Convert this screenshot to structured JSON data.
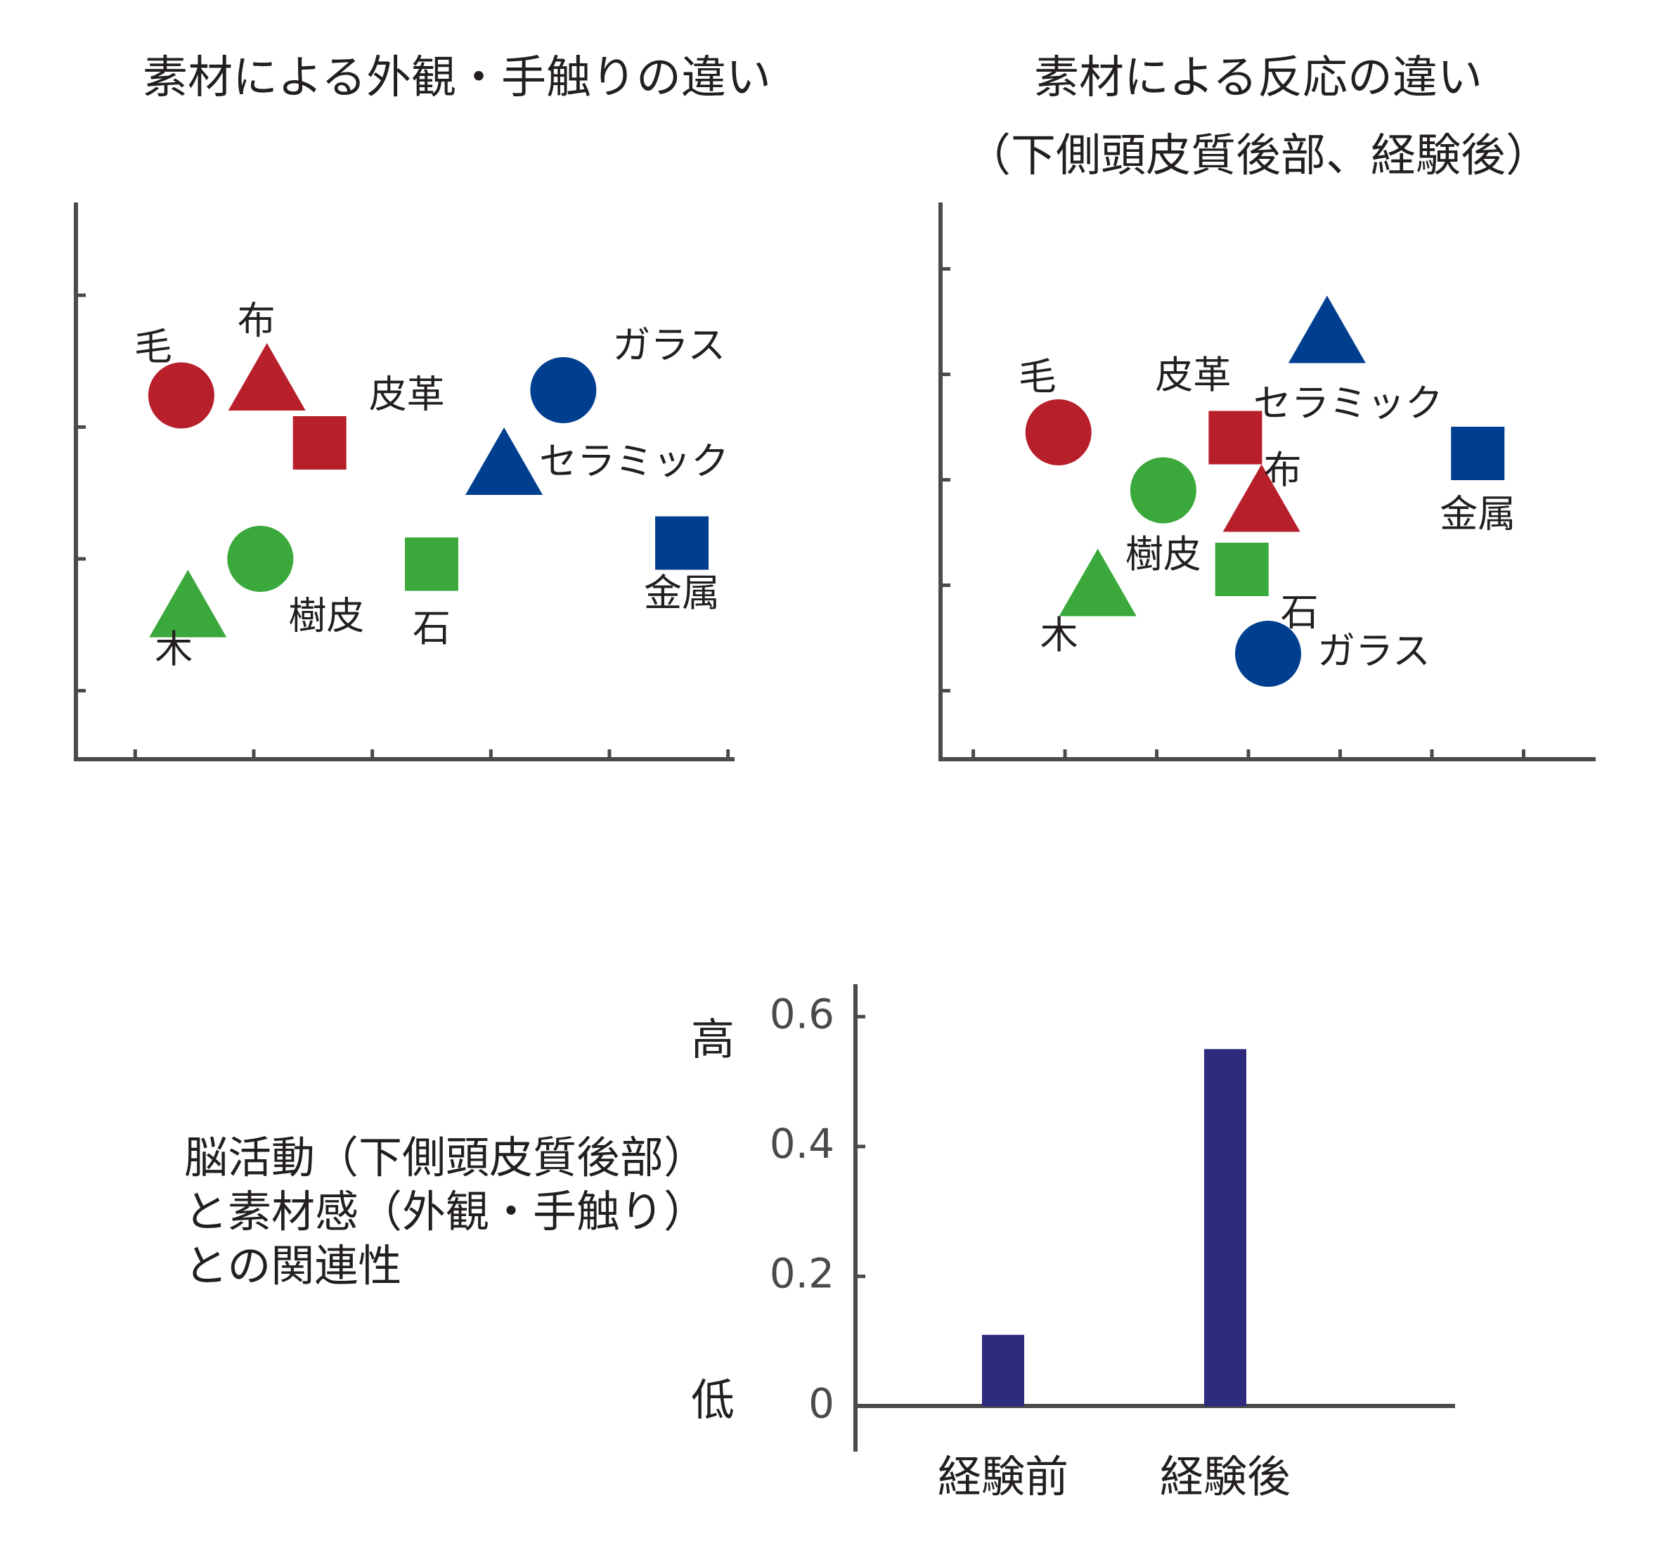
{
  "colors": {
    "red": "#b71f2b",
    "green": "#3aa83a",
    "blue": "#003f8f",
    "bar": "#2e2a7e",
    "axis": "#4a4a4a"
  },
  "chart_data": [
    {
      "type": "scatter",
      "title": "素材による外観・手触りの違い",
      "subtitle": "",
      "xlabel": "",
      "ylabel": "",
      "xlim": [
        0,
        1
      ],
      "ylim": [
        0,
        1
      ],
      "points": [
        {
          "label": "毛",
          "shape": "circle",
          "color": "red",
          "x": 0.16,
          "y": 0.69
        },
        {
          "label": "布",
          "shape": "triangle",
          "color": "red",
          "x": 0.29,
          "y": 0.72
        },
        {
          "label": "皮革",
          "shape": "square",
          "color": "red",
          "x": 0.37,
          "y": 0.6
        },
        {
          "label": "ガラス",
          "shape": "circle",
          "color": "blue",
          "x": 0.74,
          "y": 0.7
        },
        {
          "label": "セラミック",
          "shape": "triangle",
          "color": "blue",
          "x": 0.65,
          "y": 0.56
        },
        {
          "label": "金属",
          "shape": "square",
          "color": "blue",
          "x": 0.92,
          "y": 0.41
        },
        {
          "label": "樹皮",
          "shape": "circle",
          "color": "green",
          "x": 0.28,
          "y": 0.38
        },
        {
          "label": "木",
          "shape": "triangle",
          "color": "green",
          "x": 0.17,
          "y": 0.29
        },
        {
          "label": "石",
          "shape": "square",
          "color": "green",
          "x": 0.54,
          "y": 0.37
        }
      ]
    },
    {
      "type": "scatter",
      "title": "素材による反応の違い",
      "subtitle": "（下側頭皮質後部、経験後）",
      "xlabel": "",
      "ylabel": "",
      "xlim": [
        0,
        1
      ],
      "ylim": [
        0,
        1
      ],
      "points": [
        {
          "label": "毛",
          "shape": "circle",
          "color": "red",
          "x": 0.18,
          "y": 0.62
        },
        {
          "label": "皮革",
          "shape": "square",
          "color": "red",
          "x": 0.45,
          "y": 0.61
        },
        {
          "label": "布",
          "shape": "triangle",
          "color": "red",
          "x": 0.49,
          "y": 0.49
        },
        {
          "label": "セラミック",
          "shape": "triangle",
          "color": "blue",
          "x": 0.59,
          "y": 0.81
        },
        {
          "label": "金属",
          "shape": "square",
          "color": "blue",
          "x": 0.82,
          "y": 0.58
        },
        {
          "label": "ガラス",
          "shape": "circle",
          "color": "blue",
          "x": 0.5,
          "y": 0.2
        },
        {
          "label": "樹皮",
          "shape": "circle",
          "color": "green",
          "x": 0.34,
          "y": 0.51
        },
        {
          "label": "木",
          "shape": "triangle",
          "color": "green",
          "x": 0.24,
          "y": 0.33
        },
        {
          "label": "石",
          "shape": "square",
          "color": "green",
          "x": 0.46,
          "y": 0.36
        }
      ]
    },
    {
      "type": "bar",
      "title": "",
      "categories": [
        "経験前",
        "経験後"
      ],
      "values": [
        0.11,
        0.55
      ],
      "ylim": [
        -0.07,
        0.65
      ],
      "yticks": [
        0,
        0.2,
        0.4,
        0.6
      ],
      "ytick_labels": [
        "0",
        "0.2",
        "0.4",
        "0.6"
      ],
      "high_label": "高",
      "low_label": "低",
      "description": [
        "脳活動（下側頭皮質後部）",
        "と素材感（外観・手触り）",
        "との関連性"
      ]
    }
  ]
}
